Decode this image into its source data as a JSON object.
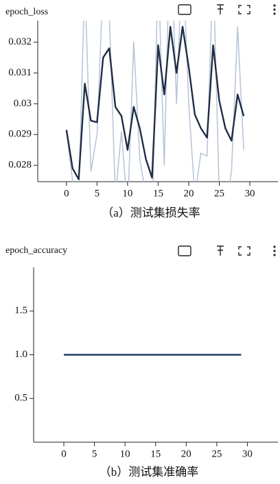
{
  "chart_data": [
    {
      "type": "line",
      "title": "epoch_loss",
      "caption": "（a）测试集损失率",
      "x": [
        0,
        1,
        2,
        3,
        4,
        5,
        6,
        7,
        8,
        9,
        10,
        11,
        12,
        13,
        14,
        15,
        16,
        17,
        18,
        19,
        20,
        21,
        22,
        23,
        24,
        25,
        26,
        27,
        28,
        29
      ],
      "series": [
        {
          "color": "#b8c6da",
          "values": [
            0.0291,
            0.0275,
            0.027,
            0.034,
            0.0278,
            0.029,
            0.034,
            0.033,
            0.027,
            0.0291,
            0.0265,
            0.032,
            0.0282,
            0.027,
            0.026,
            0.0345,
            0.028,
            0.036,
            0.03,
            0.035,
            0.03,
            0.027,
            0.0284,
            0.0283,
            0.0345,
            0.027,
            0.0265,
            0.0278,
            0.0325,
            0.0285
          ]
        },
        {
          "color": "#1f2d44",
          "values": [
            0.02915,
            0.0279,
            0.02755,
            0.03065,
            0.02945,
            0.0294,
            0.0315,
            0.0318,
            0.0299,
            0.0296,
            0.0285,
            0.0299,
            0.0292,
            0.0282,
            0.0276,
            0.0319,
            0.0303,
            0.0325,
            0.031,
            0.0325,
            0.0312,
            0.02965,
            0.0292,
            0.0289,
            0.0319,
            0.0301,
            0.0292,
            0.0288,
            0.0303,
            0.0296
          ]
        }
      ],
      "xlim": [
        -4.7,
        34.6
      ],
      "xticks": [
        0,
        5,
        10,
        15,
        20,
        25,
        30
      ],
      "ylim": [
        0.02747,
        0.0327
      ],
      "yticks": [
        0.028,
        0.029,
        0.03,
        0.031,
        0.032
      ]
    },
    {
      "type": "line",
      "title": "epoch_accuracy",
      "caption": "（b）测试集准确率",
      "x": [
        0,
        1,
        2,
        3,
        4,
        5,
        6,
        7,
        8,
        9,
        10,
        11,
        12,
        13,
        14,
        15,
        16,
        17,
        18,
        19,
        20,
        21,
        22,
        23,
        24,
        25,
        26,
        27,
        28,
        29
      ],
      "series": [
        {
          "color": "#1f3d66",
          "values": [
            1,
            1,
            1,
            1,
            1,
            1,
            1,
            1,
            1,
            1,
            1,
            1,
            1,
            1,
            1,
            1,
            1,
            1,
            1,
            1,
            1,
            1,
            1,
            1,
            1,
            1,
            1,
            1,
            1,
            1
          ]
        }
      ],
      "xlim": [
        -4.94,
        35.0
      ],
      "xticks": [
        0,
        5,
        10,
        15,
        20,
        25,
        30
      ],
      "ylim": [
        0,
        2
      ],
      "yticks": [
        0.5,
        {
          "value": 1,
          "label": "1.0"
        },
        1.5
      ]
    }
  ]
}
